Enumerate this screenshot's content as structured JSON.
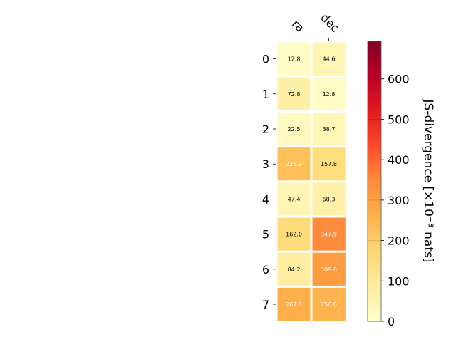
{
  "chart_data": {
    "type": "heatmap",
    "x_categories": [
      "ra",
      "dec"
    ],
    "y_categories": [
      "0",
      "1",
      "2",
      "3",
      "4",
      "5",
      "6",
      "7"
    ],
    "values": [
      [
        12.8,
        44.6
      ],
      [
        72.8,
        12.8
      ],
      [
        22.5,
        38.7
      ],
      [
        228.9,
        157.8
      ],
      [
        47.4,
        68.3
      ],
      [
        162.0,
        347.9
      ],
      [
        84.2,
        309.8
      ],
      [
        267.0,
        256.0
      ]
    ],
    "cell_labels": [
      [
        "12.8",
        "44.6"
      ],
      [
        "72.8",
        "12.8"
      ],
      [
        "22.5",
        "38.7"
      ],
      [
        "228.9",
        "157.8"
      ],
      [
        "47.4",
        "68.3"
      ],
      [
        "162.0",
        "347.9"
      ],
      [
        "84.2",
        "309.8"
      ],
      [
        "267.0",
        "256.0"
      ]
    ],
    "colorbar": {
      "label": "JS-divergence [×10⁻³ nats]",
      "vmin": 0,
      "vmax": 693,
      "ticks": [
        0,
        100,
        200,
        300,
        400,
        500,
        600
      ],
      "tick_labels": [
        "0",
        "100",
        "200",
        "300",
        "400",
        "500",
        "600"
      ],
      "colormap": [
        "#ffffcc",
        "#ffeda0",
        "#fed976",
        "#feb24c",
        "#fd8d3c",
        "#fc4e2a",
        "#e31a1c",
        "#bd0026",
        "#800026"
      ]
    },
    "title": "",
    "xlabel": "",
    "ylabel": ""
  }
}
